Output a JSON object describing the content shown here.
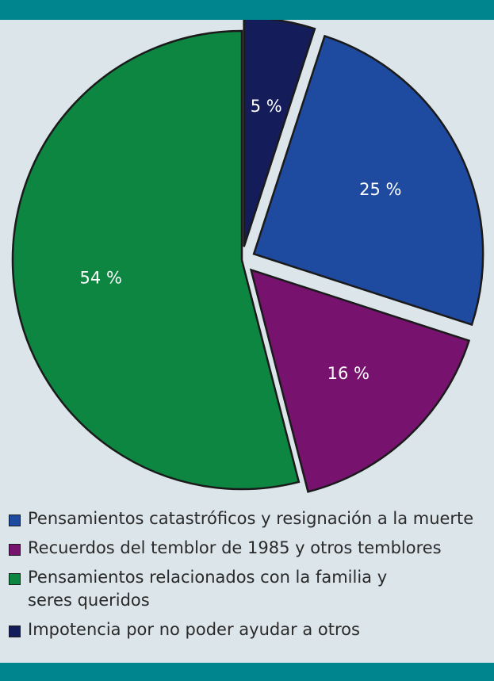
{
  "chart_data": {
    "type": "pie",
    "slices": [
      {
        "label": "Impotencia por no poder ayudar a otros",
        "value": 5,
        "value_label": "5 %",
        "color": "#141c5a",
        "exploded": true
      },
      {
        "label": "Pensamientos catastróficos y resignación a la muerte",
        "value": 25,
        "value_label": "25 %",
        "color": "#1e4aa0",
        "exploded": true
      },
      {
        "label": "Recuerdos del temblor de 1985 y otros temblores",
        "value": 16,
        "value_label": "16 %",
        "color": "#77126f",
        "exploded": true
      },
      {
        "label": "Pensamientos relacionados con la familia y\nseres queridos",
        "value": 54,
        "value_label": "54 %",
        "color": "#0c8640",
        "exploded": false
      }
    ],
    "legend": {
      "placement": "bottom",
      "items": [
        {
          "label": "Pensamientos catastróficos y resignación a la muerte",
          "color": "#1e4aa0"
        },
        {
          "label": "Recuerdos del temblor de 1985 y otros temblores",
          "color": "#77126f"
        },
        {
          "label": "Pensamientos relacionados con la familia y\nseres queridos",
          "color": "#0c8640"
        },
        {
          "label": "Impotencia por no poder ayudar a otros",
          "color": "#141c5a"
        }
      ]
    }
  },
  "theme": {
    "background": "#dce6ea",
    "band_color": "#00858e",
    "outline_color": "#1a1a1a"
  }
}
